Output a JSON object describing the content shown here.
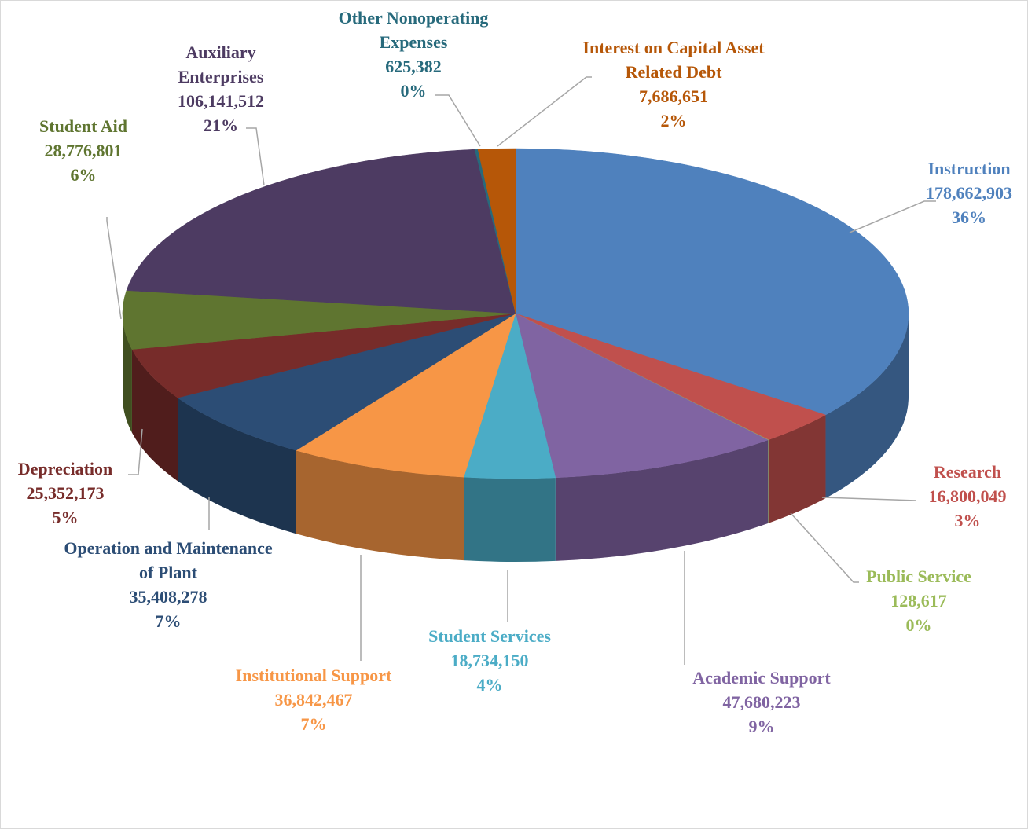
{
  "chart_data": {
    "type": "pie3d",
    "categories": [
      "Instruction",
      "Research",
      "Public Service",
      "Academic Support",
      "Student Services",
      "Institutional Support",
      "Operation and Maintenance of Plant",
      "Depreciation",
      "Student Aid",
      "Auxiliary Enterprises",
      "Other Nonoperating Expenses",
      "Interest on Capital Asset Related Debt"
    ],
    "values": [
      178662903,
      16800049,
      128617,
      47680223,
      18734150,
      36842467,
      35408278,
      25352173,
      28776801,
      106141512,
      625382,
      7686651
    ],
    "value_labels": [
      "178,662,903",
      "16,800,049",
      "128,617",
      "47,680,223",
      "18,734,150",
      "36,842,467",
      "35,408,278",
      "25,352,173",
      "28,776,801",
      "106,141,512",
      "625,382",
      "7,686,651"
    ],
    "percent_labels": [
      "36%",
      "3%",
      "0%",
      "9%",
      "4%",
      "7%",
      "7%",
      "5%",
      "6%",
      "21%",
      "0%",
      "2%"
    ],
    "colors": [
      "#4f81bd",
      "#c0504d",
      "#9bbb59",
      "#8064a2",
      "#4bacc6",
      "#f79646",
      "#2c4d75",
      "#772c2a",
      "#5f7530",
      "#4d3b62",
      "#276a7c",
      "#b65708"
    ]
  }
}
